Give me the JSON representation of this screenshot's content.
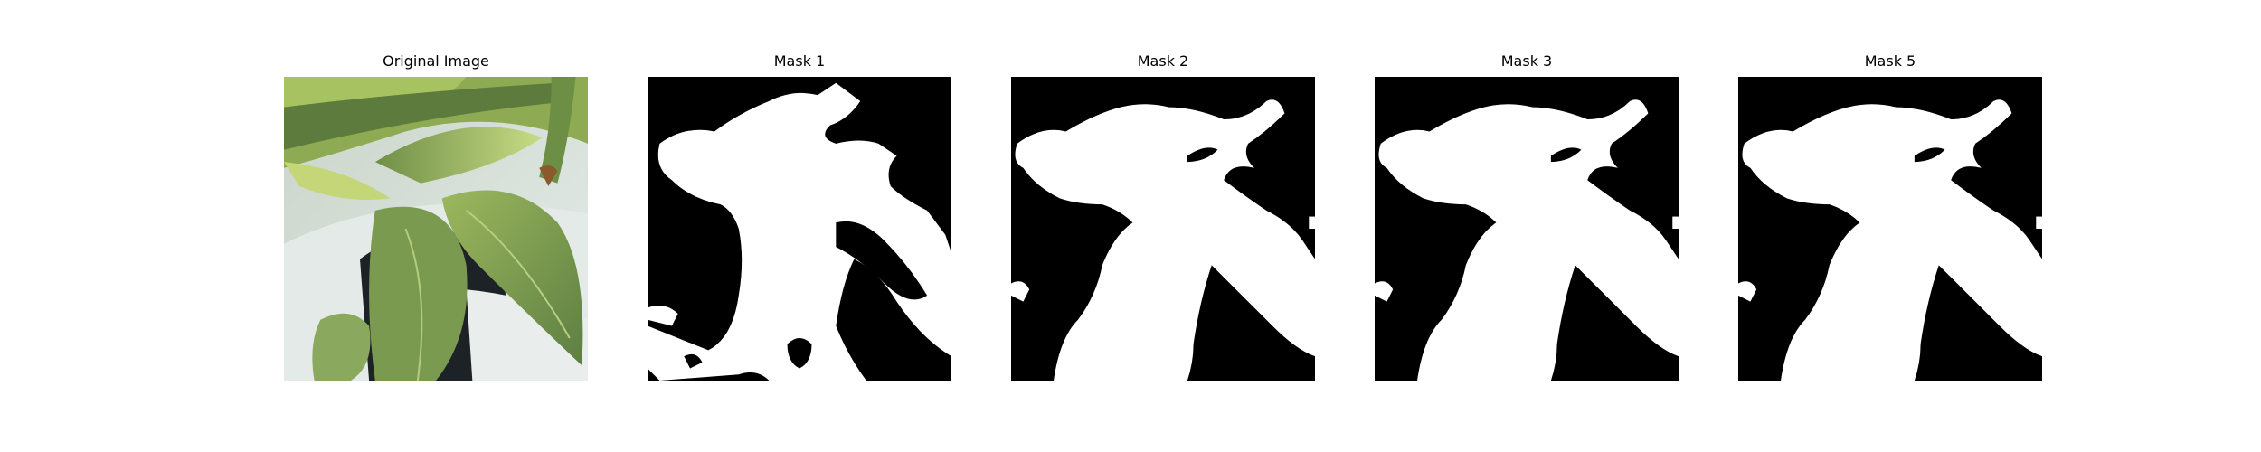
{
  "figure": {
    "panels": [
      {
        "title": "Original Image",
        "kind": "photo",
        "subject": "green leaves over a white and black pot"
      },
      {
        "title": "Mask 1",
        "kind": "mask"
      },
      {
        "title": "Mask 2",
        "kind": "mask"
      },
      {
        "title": "Mask 3",
        "kind": "mask"
      },
      {
        "title": "Mask 5",
        "kind": "mask"
      }
    ],
    "colors": {
      "mask_foreground": "#ffffff",
      "mask_background": "#000000",
      "leaf_light": "#b7cf6a",
      "leaf_mid": "#7f9c4e",
      "leaf_dark": "#50703a",
      "pot_white": "#dfe6e4",
      "pot_black": "#1b1f22"
    }
  }
}
